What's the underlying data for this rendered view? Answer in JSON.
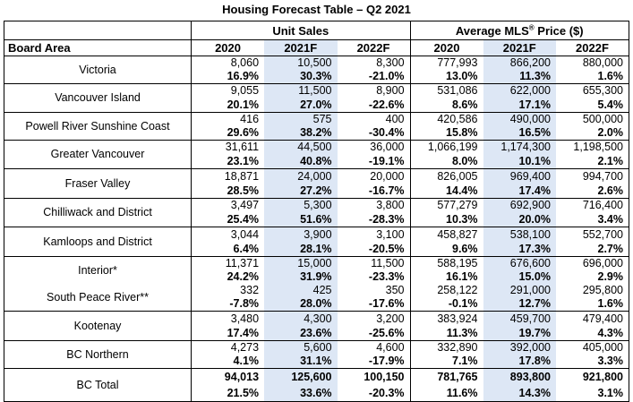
{
  "title": "Housing Forecast Table – Q2 2021",
  "groups": {
    "unit_sales": "Unit Sales",
    "avg_price_prefix": "Average MLS",
    "avg_price_sup": "®",
    "avg_price_suffix": " Price ($)"
  },
  "columns": {
    "board_area": "Board Area",
    "c1": "2020",
    "c2": "2021F",
    "c3": "2022F",
    "c4": "2020",
    "c5": "2021F",
    "c6": "2022F"
  },
  "rows": [
    {
      "name": "Victoria",
      "vals": [
        "8,060",
        "10,500",
        "8,300",
        "777,993",
        "866,200",
        "880,000"
      ],
      "pcts": [
        "16.9%",
        "30.3%",
        "-21.0%",
        "13.0%",
        "11.3%",
        "1.6%"
      ]
    },
    {
      "name": "Vancouver Island",
      "vals": [
        "9,055",
        "11,500",
        "8,900",
        "531,086",
        "622,000",
        "655,300"
      ],
      "pcts": [
        "20.1%",
        "27.0%",
        "-22.6%",
        "8.6%",
        "17.1%",
        "5.4%"
      ]
    },
    {
      "name": "Powell River Sunshine Coast",
      "vals": [
        "416",
        "575",
        "400",
        "420,586",
        "490,000",
        "500,000"
      ],
      "pcts": [
        "29.6%",
        "38.2%",
        "-30.4%",
        "15.8%",
        "16.5%",
        "2.0%"
      ]
    },
    {
      "name": "Greater Vancouver",
      "vals": [
        "31,611",
        "44,500",
        "36,000",
        "1,066,199",
        "1,174,300",
        "1,198,500"
      ],
      "pcts": [
        "23.1%",
        "40.8%",
        "-19.1%",
        "8.0%",
        "10.1%",
        "2.1%"
      ]
    },
    {
      "name": "Fraser Valley",
      "vals": [
        "18,871",
        "24,000",
        "20,000",
        "826,005",
        "969,400",
        "994,700"
      ],
      "pcts": [
        "28.5%",
        "27.2%",
        "-16.7%",
        "14.4%",
        "17.4%",
        "2.6%"
      ]
    },
    {
      "name": "Chilliwack and District",
      "vals": [
        "3,497",
        "5,300",
        "3,800",
        "577,279",
        "692,900",
        "716,400"
      ],
      "pcts": [
        "25.4%",
        "51.6%",
        "-28.3%",
        "10.3%",
        "20.0%",
        "3.4%"
      ]
    },
    {
      "name": "Kamloops and District",
      "vals": [
        "3,044",
        "3,900",
        "3,100",
        "458,827",
        "538,100",
        "552,700"
      ],
      "pcts": [
        "6.4%",
        "28.1%",
        "-20.5%",
        "9.6%",
        "17.3%",
        "2.7%"
      ]
    },
    {
      "name": "Interior*",
      "vals": [
        "11,371",
        "15,000",
        "11,500",
        "588,195",
        "676,600",
        "696,000"
      ],
      "pcts": [
        "24.2%",
        "31.9%",
        "-23.3%",
        "16.1%",
        "15.0%",
        "2.9%"
      ]
    },
    {
      "name": "South Peace River**",
      "vals": [
        "332",
        "425",
        "350",
        "258,122",
        "291,000",
        "295,800"
      ],
      "pcts": [
        "-7.8%",
        "28.0%",
        "-17.6%",
        "-0.1%",
        "12.7%",
        "1.6%"
      ]
    },
    {
      "name": "Kootenay",
      "vals": [
        "3,480",
        "4,300",
        "3,200",
        "383,924",
        "459,700",
        "479,400"
      ],
      "pcts": [
        "17.4%",
        "23.6%",
        "-25.6%",
        "11.3%",
        "19.7%",
        "4.3%"
      ]
    },
    {
      "name": "BC Northern",
      "vals": [
        "4,273",
        "5,600",
        "4,600",
        "332,890",
        "392,000",
        "405,000"
      ],
      "pcts": [
        "4.1%",
        "31.1%",
        "-17.9%",
        "7.1%",
        "17.8%",
        "3.3%"
      ]
    }
  ],
  "total": {
    "name": "BC Total",
    "vals": [
      "94,013",
      "125,600",
      "100,150",
      "781,765",
      "893,800",
      "921,800"
    ],
    "pcts": [
      "21.5%",
      "33.6%",
      "-20.3%",
      "11.6%",
      "14.3%",
      "3.1%"
    ]
  },
  "colors": {
    "shade": "#dde7f5",
    "border": "#000000"
  }
}
